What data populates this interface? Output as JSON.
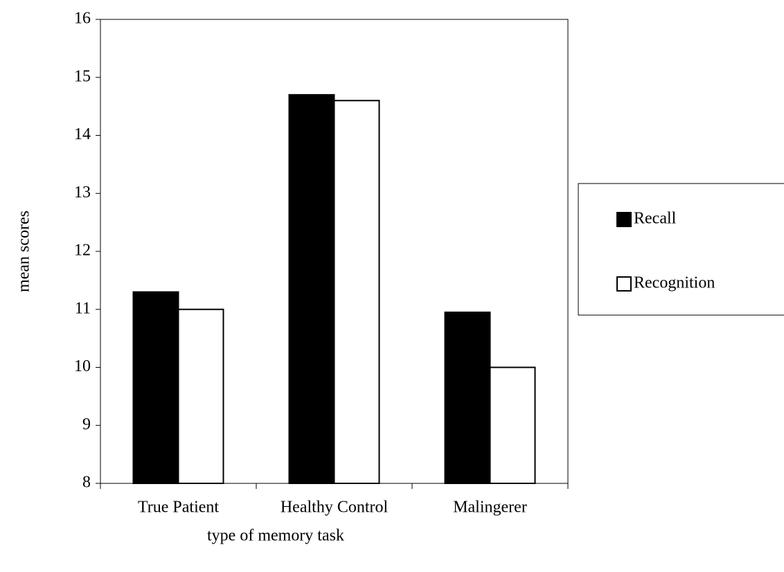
{
  "chart_data": {
    "type": "bar",
    "x_label": "type of memory task",
    "y_label": "mean scores",
    "categories": [
      "True Patient",
      "Healthy Control",
      "Malingerer"
    ],
    "series": [
      {
        "name": "Recall",
        "color": "#000000",
        "values": [
          11.3,
          14.7,
          10.95
        ]
      },
      {
        "name": "Recognition",
        "color": "#ffffff",
        "values": [
          11.0,
          14.6,
          10.0
        ]
      }
    ],
    "ylim": [
      8,
      16
    ],
    "yticks": [
      8,
      9,
      10,
      11,
      12,
      13,
      14,
      15,
      16
    ],
    "legend": "right"
  }
}
